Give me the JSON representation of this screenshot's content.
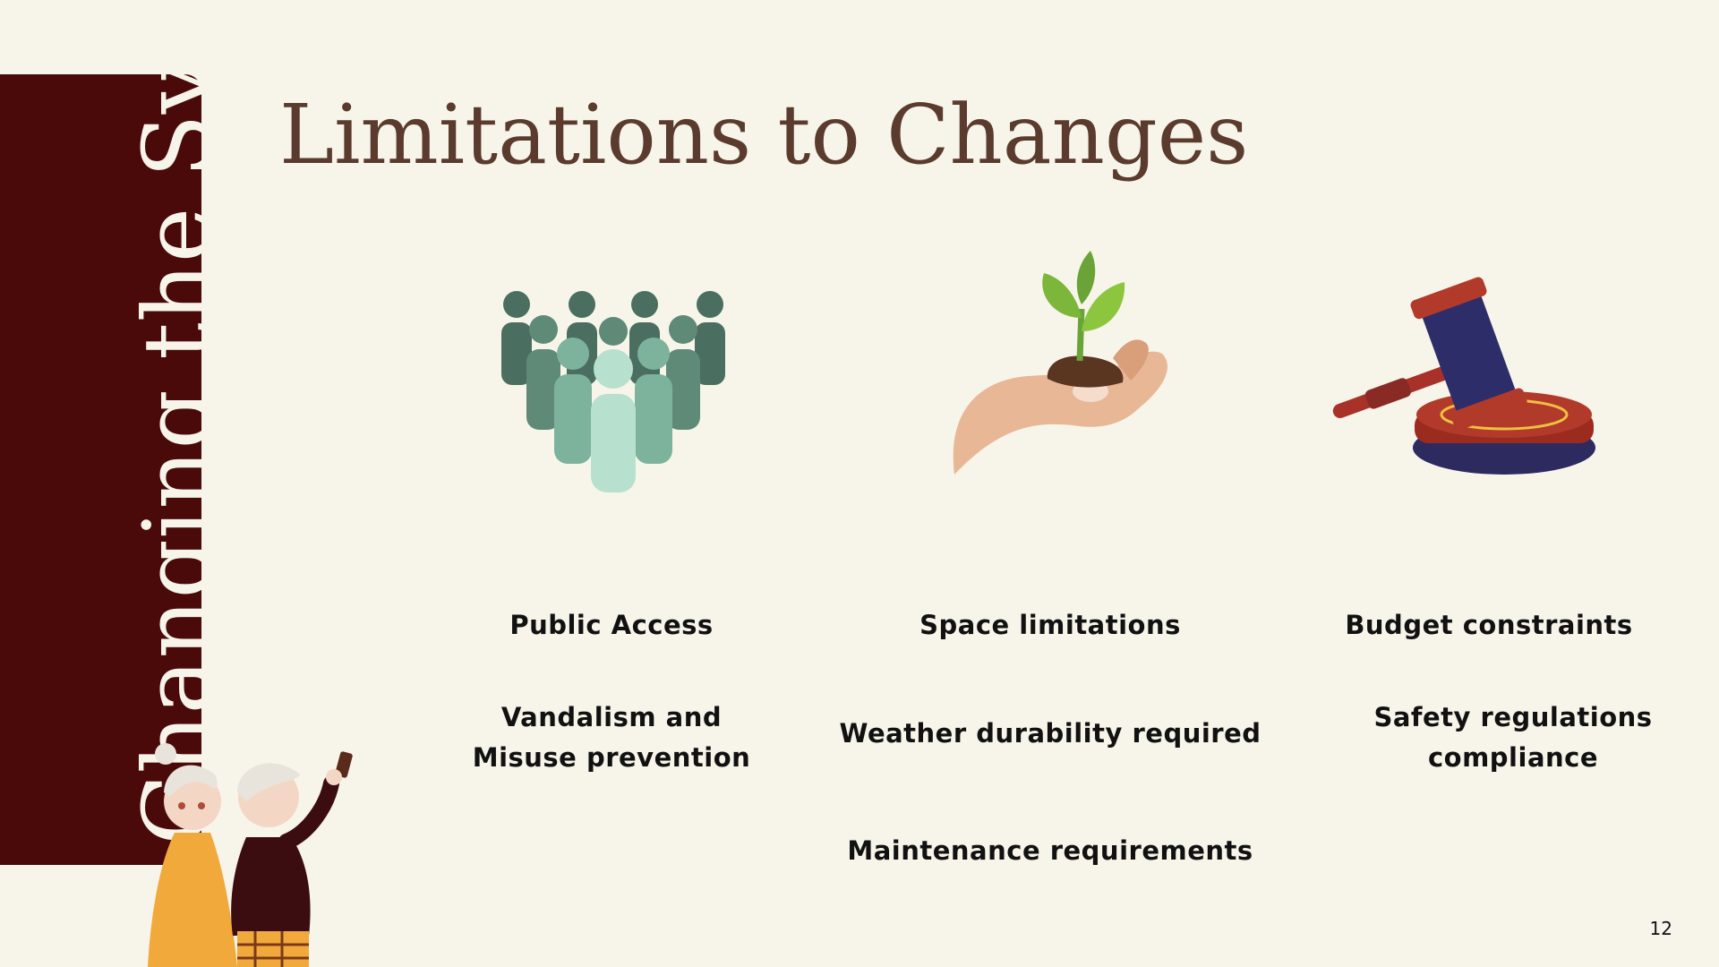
{
  "sidebar": {
    "title": "Changing the System"
  },
  "title": "Limitations to Changes",
  "columns": [
    {
      "icon": "crowd-icon",
      "heading": "Public Access",
      "items": [
        "Vandalism and\nMisuse prevention"
      ]
    },
    {
      "icon": "seedling-in-hand-icon",
      "heading": "Space limitations",
      "items": [
        "Weather durability required",
        "Maintenance requirements"
      ]
    },
    {
      "icon": "gavel-icon",
      "heading": "Budget constraints",
      "items": [
        "Safety regulations\ncompliance"
      ]
    }
  ],
  "page_number": "12",
  "colors": {
    "background": "#f7f5ea",
    "sidebar": "#4a0a0a",
    "title": "#5a3b2e",
    "text": "#111111"
  }
}
